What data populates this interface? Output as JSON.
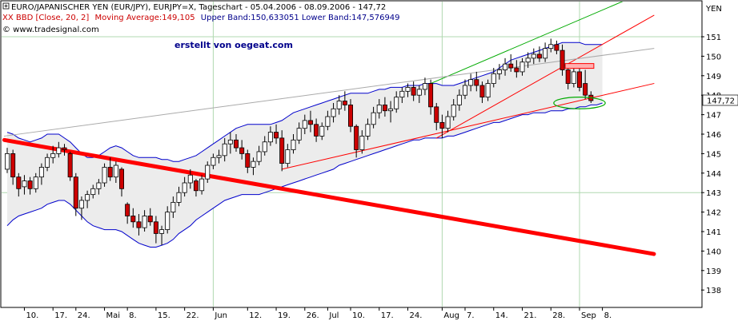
{
  "header": {
    "line1": "EURO/JAPANISCHER YEN (EUR/JPY), EURJPY=X, Tageschart - 05.04.2006 - 08.09.2006 - 147,72",
    "line2_prefix": "XX BBD [Close, 20, 2]",
    "line2_ma": "Moving Average:149,105",
    "line2_bands": "Upper Band:150,633051 Lower Band:147,576949",
    "line3": "© www.tradesignal.com",
    "annotation": "erstellt von oegeat.com",
    "currency": "YEN"
  },
  "chart_data": {
    "type": "candlestick",
    "title": "EURO/JAPANISCHER YEN (EUR/JPY), EURJPY=X, Tageschart - 05.04.2006 - 08.09.2006 - 147,72",
    "ylabel": "YEN",
    "ylim": [
      138,
      152
    ],
    "yticks": [
      138,
      139,
      140,
      141,
      142,
      143,
      144,
      145,
      146,
      147,
      148,
      149,
      150,
      151
    ],
    "last_value": 147.72,
    "last_value_label": "147,72",
    "indicator": {
      "name": "BBD [Close, 20, 2]",
      "moving_average": 149.105,
      "upper_band": 150.633051,
      "lower_band": 147.576949
    },
    "colors": {
      "up": "#ffffff",
      "down": "#cc0000",
      "wick": "#000000",
      "band": "#0000cc",
      "band_fill": "#ececec",
      "trend_red": "#ff0000",
      "trend_green": "#00aa00",
      "trend_gray": "#aaaaaa",
      "ellipse": "#00aa00",
      "grid": "#b0d8b0"
    },
    "x_ticks": [
      {
        "i": 3,
        "label": "10."
      },
      {
        "i": 8,
        "label": "17."
      },
      {
        "i": 12,
        "label": "24."
      },
      {
        "i": 17,
        "label": "Mai"
      },
      {
        "i": 21,
        "label": "8."
      },
      {
        "i": 26,
        "label": "15."
      },
      {
        "i": 31,
        "label": "22."
      },
      {
        "i": 36,
        "label": "Jun"
      },
      {
        "i": 42,
        "label": "12."
      },
      {
        "i": 47,
        "label": "19."
      },
      {
        "i": 52,
        "label": "26."
      },
      {
        "i": 56,
        "label": "Jul"
      },
      {
        "i": 60,
        "label": "10."
      },
      {
        "i": 65,
        "label": "17."
      },
      {
        "i": 70,
        "label": "24."
      },
      {
        "i": 76,
        "label": "Aug"
      },
      {
        "i": 80,
        "label": "7."
      },
      {
        "i": 85,
        "label": "14."
      },
      {
        "i": 90,
        "label": "21."
      },
      {
        "i": 95,
        "label": "28."
      },
      {
        "i": 100,
        "label": "Sep"
      },
      {
        "i": 104,
        "label": "8."
      }
    ],
    "candles": [
      [
        144.2,
        145.3,
        144.0,
        145.0
      ],
      [
        145.0,
        145.2,
        143.4,
        143.8
      ],
      [
        143.8,
        144.0,
        142.8,
        143.2
      ],
      [
        143.3,
        143.9,
        142.9,
        143.6
      ],
      [
        143.6,
        143.8,
        142.9,
        143.2
      ],
      [
        143.2,
        144.0,
        143.0,
        143.8
      ],
      [
        143.8,
        144.5,
        143.4,
        144.3
      ],
      [
        144.3,
        145.0,
        144.1,
        144.8
      ],
      [
        144.8,
        145.4,
        144.5,
        145.0
      ],
      [
        145.0,
        145.6,
        144.8,
        145.3
      ],
      [
        145.3,
        145.5,
        144.9,
        145.2
      ],
      [
        145.0,
        145.1,
        143.6,
        143.8
      ],
      [
        143.8,
        144.0,
        141.8,
        142.2
      ],
      [
        142.2,
        142.8,
        141.6,
        142.6
      ],
      [
        142.6,
        143.1,
        142.2,
        142.9
      ],
      [
        142.9,
        143.4,
        142.7,
        143.2
      ],
      [
        143.2,
        143.7,
        142.9,
        143.5
      ],
      [
        143.5,
        144.5,
        143.3,
        144.3
      ],
      [
        144.3,
        144.8,
        143.6,
        143.8
      ],
      [
        143.8,
        144.6,
        143.5,
        144.4
      ],
      [
        144.2,
        144.3,
        142.8,
        143.2
      ],
      [
        142.4,
        142.5,
        141.4,
        141.8
      ],
      [
        141.8,
        142.2,
        141.2,
        141.5
      ],
      [
        141.5,
        141.9,
        140.8,
        141.2
      ],
      [
        141.2,
        142.1,
        141.0,
        141.8
      ],
      [
        141.8,
        142.2,
        141.3,
        141.5
      ],
      [
        141.5,
        141.8,
        140.4,
        140.9
      ],
      [
        140.9,
        141.3,
        140.3,
        141.1
      ],
      [
        141.1,
        142.3,
        140.9,
        142.0
      ],
      [
        142.0,
        142.8,
        141.7,
        142.5
      ],
      [
        142.5,
        143.3,
        142.3,
        143.0
      ],
      [
        143.0,
        143.8,
        142.8,
        143.5
      ],
      [
        143.5,
        144.2,
        143.2,
        143.9
      ],
      [
        143.6,
        143.7,
        142.8,
        143.1
      ],
      [
        143.1,
        143.9,
        142.9,
        143.7
      ],
      [
        143.7,
        144.6,
        143.5,
        144.4
      ],
      [
        144.4,
        145.0,
        144.2,
        144.8
      ],
      [
        144.8,
        145.2,
        144.5,
        144.9
      ],
      [
        144.9,
        145.8,
        144.6,
        145.5
      ],
      [
        145.5,
        146.1,
        145.0,
        145.7
      ],
      [
        145.7,
        146.0,
        145.1,
        145.3
      ],
      [
        145.3,
        145.7,
        144.7,
        145.0
      ],
      [
        145.0,
        145.2,
        144.0,
        144.3
      ],
      [
        144.3,
        144.8,
        143.9,
        144.6
      ],
      [
        144.6,
        145.4,
        144.4,
        145.1
      ],
      [
        145.1,
        145.9,
        144.9,
        145.6
      ],
      [
        145.6,
        146.4,
        145.4,
        146.1
      ],
      [
        146.1,
        146.5,
        145.5,
        145.8
      ],
      [
        145.8,
        146.2,
        144.1,
        144.5
      ],
      [
        144.5,
        145.5,
        144.3,
        145.2
      ],
      [
        145.2,
        146.0,
        145.0,
        145.7
      ],
      [
        145.7,
        146.6,
        145.5,
        146.3
      ],
      [
        146.3,
        147.0,
        146.0,
        146.7
      ],
      [
        146.7,
        147.2,
        146.1,
        146.5
      ],
      [
        146.5,
        146.8,
        145.6,
        145.9
      ],
      [
        145.9,
        146.6,
        145.7,
        146.4
      ],
      [
        146.4,
        147.2,
        146.2,
        146.9
      ],
      [
        146.9,
        147.6,
        146.6,
        147.3
      ],
      [
        147.3,
        148.0,
        147.0,
        147.7
      ],
      [
        147.7,
        148.2,
        147.2,
        147.5
      ],
      [
        147.5,
        147.8,
        146.1,
        146.4
      ],
      [
        146.4,
        146.5,
        144.8,
        145.2
      ],
      [
        145.2,
        146.2,
        145.0,
        145.9
      ],
      [
        145.9,
        146.8,
        145.7,
        146.5
      ],
      [
        146.5,
        147.4,
        146.3,
        147.1
      ],
      [
        147.1,
        147.8,
        146.8,
        147.5
      ],
      [
        147.5,
        147.9,
        146.9,
        147.2
      ],
      [
        147.2,
        147.7,
        146.6,
        147.3
      ],
      [
        147.3,
        148.2,
        147.1,
        147.9
      ],
      [
        147.9,
        148.4,
        147.6,
        148.2
      ],
      [
        148.2,
        148.6,
        147.9,
        148.4
      ],
      [
        148.4,
        148.7,
        147.7,
        148.0
      ],
      [
        148.0,
        148.5,
        147.6,
        148.3
      ],
      [
        148.3,
        148.9,
        148.0,
        148.6
      ],
      [
        148.6,
        148.8,
        147.0,
        147.4
      ],
      [
        147.4,
        147.6,
        146.2,
        146.6
      ],
      [
        146.6,
        147.0,
        145.8,
        146.3
      ],
      [
        146.3,
        147.2,
        146.1,
        146.9
      ],
      [
        146.9,
        147.8,
        146.7,
        147.5
      ],
      [
        147.5,
        148.3,
        147.2,
        148.0
      ],
      [
        148.0,
        148.8,
        147.8,
        148.5
      ],
      [
        148.5,
        149.1,
        148.2,
        148.8
      ],
      [
        148.8,
        149.2,
        148.2,
        148.5
      ],
      [
        148.5,
        148.7,
        147.6,
        147.9
      ],
      [
        147.9,
        148.8,
        147.7,
        148.6
      ],
      [
        148.6,
        149.4,
        148.4,
        149.1
      ],
      [
        149.1,
        149.6,
        148.8,
        149.3
      ],
      [
        149.3,
        149.9,
        149.0,
        149.6
      ],
      [
        149.6,
        150.1,
        149.2,
        149.4
      ],
      [
        149.4,
        149.8,
        148.9,
        149.2
      ],
      [
        149.2,
        149.9,
        149.0,
        149.7
      ],
      [
        149.7,
        150.2,
        149.4,
        149.9
      ],
      [
        149.9,
        150.4,
        149.6,
        150.1
      ],
      [
        150.1,
        150.5,
        149.7,
        149.9
      ],
      [
        149.9,
        150.7,
        149.7,
        150.4
      ],
      [
        150.4,
        150.9,
        150.2,
        150.6
      ],
      [
        150.6,
        150.8,
        150.1,
        150.3
      ],
      [
        150.3,
        150.6,
        149.0,
        149.3
      ],
      [
        149.3,
        149.6,
        148.3,
        148.6
      ],
      [
        148.6,
        149.4,
        148.4,
        149.2
      ],
      [
        149.2,
        149.6,
        148.2,
        148.4
      ],
      [
        148.6,
        149.3,
        147.8,
        148.0
      ],
      [
        148.0,
        148.2,
        147.6,
        147.72
      ]
    ],
    "upper_band": [
      146.1,
      146.0,
      145.8,
      145.7,
      145.6,
      145.7,
      145.8,
      146.0,
      146.0,
      146.0,
      145.8,
      145.6,
      145.3,
      145.0,
      144.8,
      144.8,
      144.9,
      145.1,
      145.3,
      145.4,
      145.3,
      145.1,
      144.9,
      144.8,
      144.8,
      144.8,
      144.8,
      144.7,
      144.7,
      144.6,
      144.6,
      144.7,
      144.8,
      144.9,
      145.1,
      145.3,
      145.5,
      145.7,
      145.9,
      146.1,
      146.3,
      146.4,
      146.5,
      146.5,
      146.5,
      146.5,
      146.5,
      146.6,
      146.7,
      146.9,
      147.1,
      147.2,
      147.3,
      147.4,
      147.5,
      147.6,
      147.7,
      147.8,
      147.9,
      148.0,
      148.1,
      148.1,
      148.1,
      148.1,
      148.2,
      148.3,
      148.3,
      148.4,
      148.4,
      148.4,
      148.5,
      148.5,
      148.5,
      148.6,
      148.6,
      148.6,
      148.5,
      148.5,
      148.5,
      148.6,
      148.7,
      148.8,
      148.9,
      149.0,
      149.1,
      149.2,
      149.4,
      149.6,
      149.8,
      149.9,
      150.0,
      150.1,
      150.2,
      150.3,
      150.4,
      150.5,
      150.6,
      150.7,
      150.7,
      150.7,
      150.7,
      150.6,
      150.6,
      150.6,
      150.6
    ],
    "lower_band": [
      141.3,
      141.6,
      141.8,
      141.9,
      142.0,
      142.1,
      142.2,
      142.4,
      142.5,
      142.6,
      142.6,
      142.4,
      142.1,
      141.8,
      141.5,
      141.3,
      141.2,
      141.1,
      141.1,
      141.1,
      141.0,
      140.8,
      140.6,
      140.4,
      140.3,
      140.2,
      140.2,
      140.3,
      140.4,
      140.6,
      140.9,
      141.1,
      141.3,
      141.6,
      141.8,
      142.0,
      142.2,
      142.4,
      142.6,
      142.7,
      142.8,
      142.9,
      142.9,
      142.9,
      142.9,
      143.0,
      143.1,
      143.2,
      143.3,
      143.4,
      143.5,
      143.6,
      143.7,
      143.8,
      143.9,
      144.0,
      144.1,
      144.2,
      144.4,
      144.5,
      144.6,
      144.7,
      144.8,
      144.9,
      145.0,
      145.1,
      145.2,
      145.3,
      145.4,
      145.5,
      145.6,
      145.7,
      145.7,
      145.8,
      145.8,
      145.8,
      145.8,
      145.9,
      145.9,
      146.0,
      146.1,
      146.2,
      146.3,
      146.4,
      146.5,
      146.6,
      146.6,
      146.7,
      146.8,
      146.9,
      147.0,
      147.0,
      147.1,
      147.1,
      147.1,
      147.2,
      147.2,
      147.2,
      147.3,
      147.3,
      147.4,
      147.4,
      147.5,
      147.5,
      147.6
    ],
    "trendlines": [
      {
        "name": "thick-downtrend",
        "color": "#ff0000",
        "width": 5,
        "x1": -0.5,
        "y1": 145.7,
        "x2": 113,
        "y2": 139.85
      },
      {
        "name": "lower-uptrend",
        "color": "#ff0000",
        "width": 1,
        "x1": 48,
        "y1": 144.2,
        "x2": 113,
        "y2": 148.6
      },
      {
        "name": "steep-uptrend",
        "color": "#ff0000",
        "width": 1,
        "x1": 75,
        "y1": 145.8,
        "x2": 113,
        "y2": 152.1
      },
      {
        "name": "green-channel",
        "color": "#00aa00",
        "width": 1,
        "x1": 74,
        "y1": 148.6,
        "x2": 113,
        "y2": 153.5
      },
      {
        "name": "gray-resistance",
        "color": "#aaaaaa",
        "width": 1,
        "x1": -0.5,
        "y1": 145.9,
        "x2": 113,
        "y2": 150.4
      }
    ],
    "markers": [
      {
        "name": "resistance-box",
        "x1": 97.5,
        "x2": 102.5,
        "y": 149.5
      },
      {
        "name": "support-ellipse",
        "cx": 100,
        "cy": 147.6,
        "rx": 4.5,
        "ry": 0.3
      }
    ]
  }
}
